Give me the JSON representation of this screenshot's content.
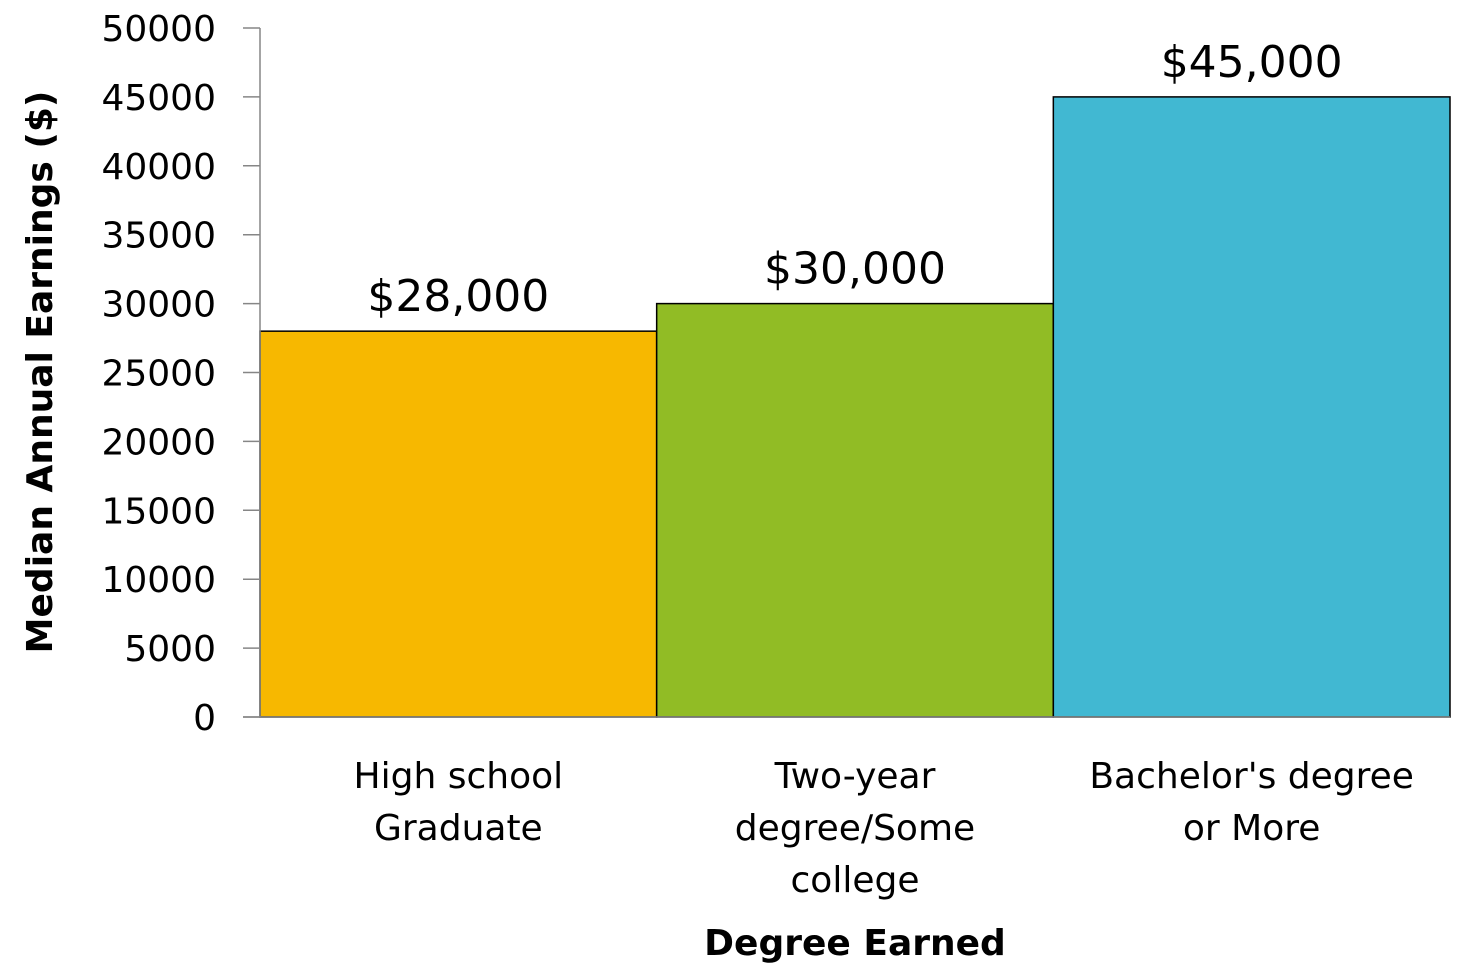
{
  "chart_data": {
    "type": "bar",
    "categories": [
      [
        "High school",
        "Graduate"
      ],
      [
        "Two-year",
        "degree/Some",
        "college"
      ],
      [
        "Bachelor's degree",
        "or More"
      ]
    ],
    "values": [
      28000,
      30000,
      45000
    ],
    "data_labels": [
      "$28,000",
      "$30,000",
      "$45,000"
    ],
    "colors": [
      "#F7B800",
      "#91BC25",
      "#41B8D2"
    ],
    "title": "",
    "xlabel": "Degree Earned",
    "ylabel": "Median Annual Earnings ($)",
    "ylim": [
      0,
      50000
    ],
    "yticks": [
      "0",
      "5000",
      "10000",
      "15000",
      "20000",
      "25000",
      "30000",
      "35000",
      "40000",
      "45000",
      "50000"
    ],
    "grid": false,
    "legend": "none"
  }
}
